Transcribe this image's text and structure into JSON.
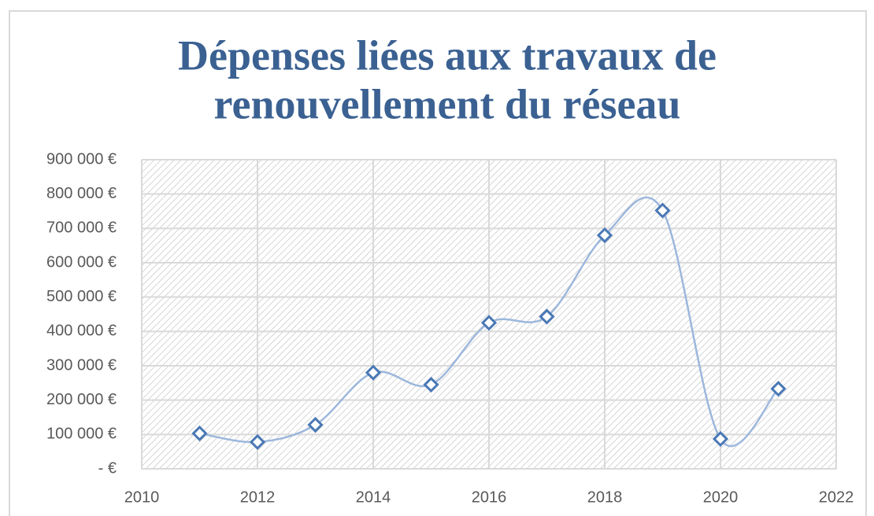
{
  "chart_data": {
    "type": "scatter",
    "title": [
      "Dépenses liées aux travaux de",
      "renouvellement du réseau"
    ],
    "x": [
      2011,
      2012,
      2013,
      2014,
      2015,
      2016,
      2017,
      2018,
      2019,
      2020,
      2021
    ],
    "values": [
      103000,
      78000,
      128000,
      280000,
      245000,
      425000,
      443000,
      680000,
      752000,
      87000,
      233000
    ],
    "color": "#4a78b5",
    "line_color": "#9db7dc",
    "smooth": true,
    "xlim": [
      2010,
      2022
    ],
    "xticks": [
      2010,
      2012,
      2014,
      2016,
      2018,
      2020,
      2022
    ],
    "ylim": [
      0,
      900000
    ],
    "yticks": [
      {
        "value": 0,
        "label": "-   €"
      },
      {
        "value": 100000,
        "label": "100 000 €"
      },
      {
        "value": 200000,
        "label": "200 000 €"
      },
      {
        "value": 300000,
        "label": "300 000 €"
      },
      {
        "value": 400000,
        "label": "400 000 €"
      },
      {
        "value": 500000,
        "label": "500 000 €"
      },
      {
        "value": 600000,
        "label": "600 000 €"
      },
      {
        "value": 700000,
        "label": "700 000 €"
      },
      {
        "value": 800000,
        "label": "800 000 €"
      },
      {
        "value": 900000,
        "label": "900 000 €"
      }
    ],
    "grid": true
  }
}
